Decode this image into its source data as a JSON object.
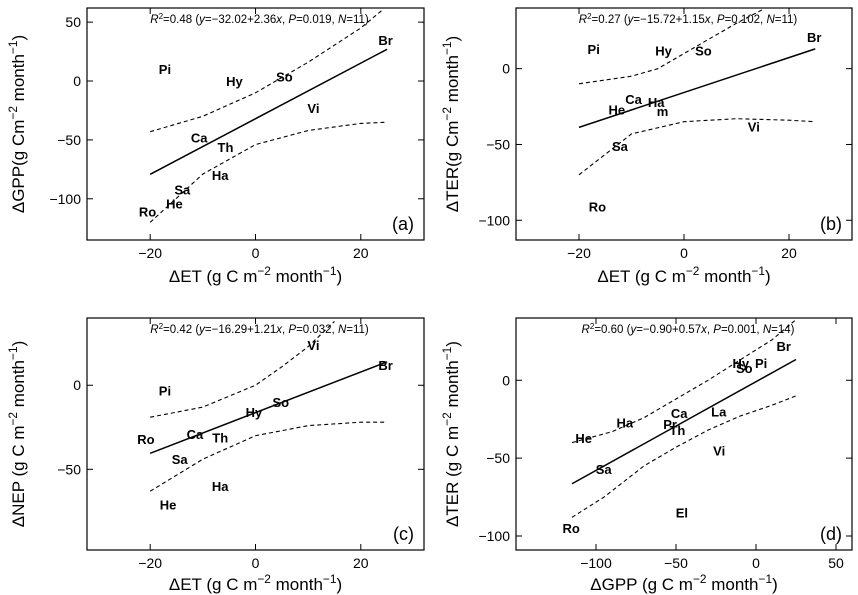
{
  "chart_data": [
    {
      "type": "scatter",
      "panel_label": "(a)",
      "xlabel": "ΔET (g C m⁻² month⁻¹)",
      "ylabel": "ΔGPP(g Cm⁻² month⁻¹)",
      "stats": "R²=0.48 (y=−32.02+2.36x, P=0.019, N=11)",
      "xlim": [
        -32,
        32
      ],
      "ylim": [
        -135,
        62
      ],
      "xticks": [
        -20,
        0,
        20
      ],
      "yticks": [
        50,
        0,
        -50,
        -100
      ],
      "fit": {
        "intercept": -32.02,
        "slope": 2.36,
        "x_range": [
          -20,
          25
        ]
      },
      "ci_upper": [
        [
          -20,
          -43
        ],
        [
          -10,
          -30
        ],
        [
          0,
          -10
        ],
        [
          10,
          16
        ],
        [
          20,
          45
        ],
        [
          24,
          60
        ]
      ],
      "ci_lower": [
        [
          -20,
          -120
        ],
        [
          -10,
          -79
        ],
        [
          0,
          -54
        ],
        [
          10,
          -42
        ],
        [
          20,
          -36
        ],
        [
          25,
          -35
        ]
      ],
      "points": [
        {
          "label": "Pi",
          "x": -17.2,
          "y": 10
        },
        {
          "label": "Hy",
          "x": -4,
          "y": 0
        },
        {
          "label": "So",
          "x": 5.5,
          "y": 4
        },
        {
          "label": "Br",
          "x": 24.7,
          "y": 35
        },
        {
          "label": "Vi",
          "x": 11,
          "y": -23
        },
        {
          "label": "Ca",
          "x": -10.7,
          "y": -48
        },
        {
          "label": "Th",
          "x": -5.7,
          "y": -56
        },
        {
          "label": "Ha",
          "x": -6.7,
          "y": -80
        },
        {
          "label": "Sa",
          "x": -13.9,
          "y": -92
        },
        {
          "label": "He",
          "x": -15.4,
          "y": -104
        },
        {
          "label": "Ro",
          "x": -20.5,
          "y": -111
        }
      ]
    },
    {
      "type": "scatter",
      "panel_label": "(b)",
      "xlabel": "ΔET (g C m⁻² month⁻¹)",
      "ylabel": "ΔTER(g Cm⁻² month⁻¹)",
      "stats": "R²=0.27 (y=−15.72+1.15x, P=0.102, N=11)",
      "xlim": [
        -32,
        32
      ],
      "ylim": [
        -113,
        40
      ],
      "xticks": [
        -20,
        0,
        20
      ],
      "yticks": [
        0,
        -50,
        -100
      ],
      "fit": {
        "intercept": -15.72,
        "slope": 1.15,
        "x_range": [
          -20,
          25
        ]
      },
      "ci_upper": [
        [
          -20,
          -10
        ],
        [
          -10,
          -5
        ],
        [
          -5,
          0
        ],
        [
          0,
          10
        ],
        [
          5,
          20
        ],
        [
          10,
          30
        ],
        [
          15,
          39
        ]
      ],
      "ci_lower": [
        [
          -20,
          -70
        ],
        [
          -10,
          -43
        ],
        [
          0,
          -35
        ],
        [
          10,
          -33
        ],
        [
          20,
          -34
        ],
        [
          25,
          -35
        ]
      ],
      "points": [
        {
          "label": "Pi",
          "x": -17.2,
          "y": 13
        },
        {
          "label": "Hy",
          "x": -3.9,
          "y": 12
        },
        {
          "label": "So",
          "x": 3.7,
          "y": 12
        },
        {
          "label": "Br",
          "x": 24.8,
          "y": 21
        },
        {
          "label": "Ca",
          "x": -9.6,
          "y": -20
        },
        {
          "label": "Ha",
          "x": -5.3,
          "y": -22
        },
        {
          "label": "He",
          "x": -12.8,
          "y": -27
        },
        {
          "label": "m",
          "x": -4.1,
          "y": -28
        },
        {
          "label": "Vi",
          "x": 13.3,
          "y": -38
        },
        {
          "label": "Sa",
          "x": -12.2,
          "y": -51
        },
        {
          "label": "Ro",
          "x": -16.5,
          "y": -91
        }
      ]
    },
    {
      "type": "scatter",
      "panel_label": "(c)",
      "xlabel": "ΔET (g C m⁻² month⁻¹)",
      "ylabel": "ΔNEP (g C m⁻² month⁻¹)",
      "stats": "R²=0.42 (y=−16.29+1.21x, P=0.032, N=11)",
      "xlim": [
        -32,
        32
      ],
      "ylim": [
        -98,
        40
      ],
      "xticks": [
        -20,
        0,
        20
      ],
      "yticks": [
        0,
        -50
      ],
      "fit": {
        "intercept": -16.29,
        "slope": 1.21,
        "x_range": [
          -20,
          25
        ]
      },
      "ci_upper": [
        [
          -20,
          -19
        ],
        [
          -10,
          -13
        ],
        [
          0,
          0
        ],
        [
          5,
          11
        ],
        [
          10,
          23
        ],
        [
          15,
          38
        ]
      ],
      "ci_lower": [
        [
          -20,
          -63
        ],
        [
          -10,
          -44
        ],
        [
          0,
          -30
        ],
        [
          10,
          -24
        ],
        [
          20,
          -22
        ],
        [
          25,
          -22
        ]
      ],
      "points": [
        {
          "label": "Vi",
          "x": 11,
          "y": 24
        },
        {
          "label": "Br",
          "x": 24.7,
          "y": 12
        },
        {
          "label": "Pi",
          "x": -17.2,
          "y": -3
        },
        {
          "label": "So",
          "x": 4.8,
          "y": -10
        },
        {
          "label": "Hy",
          "x": -0.3,
          "y": -16
        },
        {
          "label": "Ca",
          "x": -11.5,
          "y": -29
        },
        {
          "label": "Th",
          "x": -6.7,
          "y": -31
        },
        {
          "label": "Ro",
          "x": -20.8,
          "y": -32
        },
        {
          "label": "Sa",
          "x": -14.4,
          "y": -44
        },
        {
          "label": "Ha",
          "x": -6.7,
          "y": -60
        },
        {
          "label": "He",
          "x": -16.6,
          "y": -71
        }
      ]
    },
    {
      "type": "scatter",
      "panel_label": "(d)",
      "xlabel": "ΔGPP (g C m⁻² month⁻¹)",
      "ylabel": "ΔTER (g C m⁻² month⁻¹)",
      "stats": "R²=0.60 (y=−0.90+0.57x, P=0.001, N=14)",
      "xlim": [
        -150,
        60
      ],
      "ylim": [
        -109,
        40
      ],
      "xticks": [
        -100,
        -50,
        0,
        50
      ],
      "yticks": [
        0,
        -50,
        -100
      ],
      "fit": {
        "intercept": -0.9,
        "slope": 0.57,
        "x_range": [
          -115,
          25
        ]
      },
      "ci_upper": [
        [
          -115,
          -40
        ],
        [
          -90,
          -33
        ],
        [
          -70,
          -24
        ],
        [
          -50,
          -12
        ],
        [
          -30,
          0
        ],
        [
          -10,
          13
        ],
        [
          10,
          26
        ],
        [
          25,
          39
        ]
      ],
      "ci_lower": [
        [
          -115,
          -88
        ],
        [
          -95,
          -75
        ],
        [
          -70,
          -55
        ],
        [
          -50,
          -43
        ],
        [
          -30,
          -32
        ],
        [
          -10,
          -23
        ],
        [
          10,
          -16
        ],
        [
          25,
          -10
        ]
      ],
      "points": [
        {
          "label": "Br",
          "x": 17.3,
          "y": 22
        },
        {
          "label": "Hy",
          "x": -9.5,
          "y": 11
        },
        {
          "label": "So",
          "x": -7.3,
          "y": 8
        },
        {
          "label": "Pi",
          "x": 3.2,
          "y": 11
        },
        {
          "label": "He",
          "x": -107.7,
          "y": -37
        },
        {
          "label": "Ha",
          "x": -82,
          "y": -27
        },
        {
          "label": "Ca",
          "x": -48,
          "y": -21
        },
        {
          "label": "Pr",
          "x": -53.7,
          "y": -28
        },
        {
          "label": "Th",
          "x": -49.1,
          "y": -32
        },
        {
          "label": "La",
          "x": -23.3,
          "y": -20
        },
        {
          "label": "Vi",
          "x": -23,
          "y": -45
        },
        {
          "label": "Sa",
          "x": -95.2,
          "y": -57
        },
        {
          "label": "El",
          "x": -46.3,
          "y": -85
        },
        {
          "label": "Ro",
          "x": -115.5,
          "y": -95
        }
      ]
    }
  ]
}
